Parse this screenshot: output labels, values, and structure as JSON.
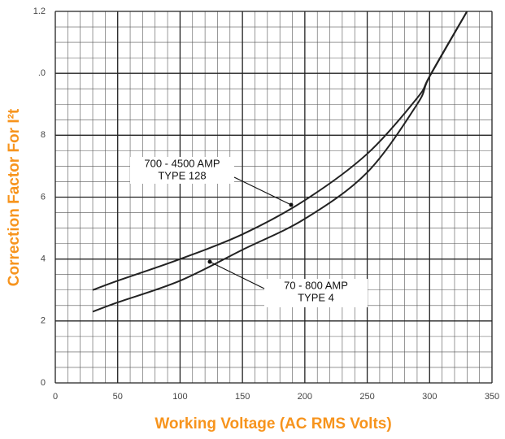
{
  "chart_data": {
    "type": "line",
    "x": [
      30,
      50,
      100,
      150,
      200,
      250,
      290,
      300,
      330
    ],
    "series": [
      {
        "color": "#222222",
        "values": [
          0.3,
          0.33,
          0.4,
          0.48,
          0.59,
          0.74,
          0.92,
          0.99,
          1.2
        ]
      },
      {
        "color": "#222222",
        "values": [
          0.23,
          0.26,
          0.33,
          0.43,
          0.53,
          0.68,
          0.9,
          0.99,
          1.2
        ]
      }
    ],
    "annotations": [
      [
        "700 - 4500 AMP",
        "TYPE 128"
      ],
      [
        "70 - 800 AMP",
        "TYPE 4"
      ]
    ],
    "xlabel": "Working Voltage (AC RMS Volts)",
    "ylabel": "Correction Factor For I²t",
    "xlim": [
      0,
      350
    ],
    "xticks": [
      0,
      50,
      100,
      150,
      200,
      250,
      300,
      350
    ],
    "ylim": [
      0,
      1.2
    ],
    "yticks": [
      0,
      {
        "value": 0.2,
        "label": "2"
      },
      {
        "value": 0.4,
        "label": "4"
      },
      {
        "value": 0.6,
        "label": "6"
      },
      {
        "value": 0.8,
        "label": "8"
      },
      {
        "value": 1.0,
        "label": ".0"
      },
      1.2
    ],
    "grid": true
  }
}
